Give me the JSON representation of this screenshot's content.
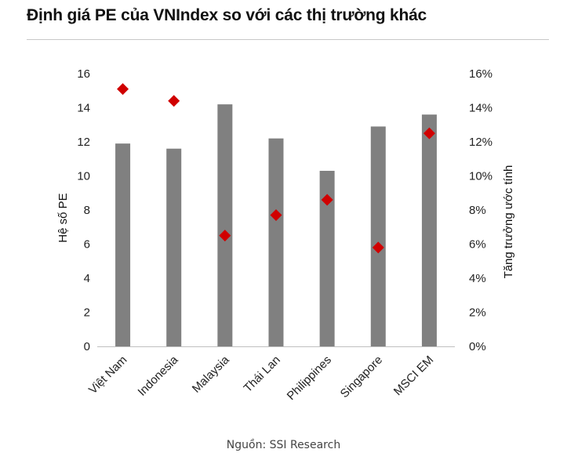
{
  "title": "Định giá PE của VNIndex so với các thị trường khác",
  "source": "Nguồn: SSI Research",
  "colors": {
    "bar": "#808080",
    "marker": "#d00000",
    "text": "#222222"
  },
  "chart_data": {
    "type": "bar",
    "categories": [
      "Việt Nam",
      "Indonesia",
      "Malaysia",
      "Thái Lan",
      "Philippines",
      "Singapore",
      "MSCI EM"
    ],
    "series": [
      {
        "values": [
          11.9,
          11.6,
          14.2,
          12.2,
          10.3,
          12.9,
          13.6
        ],
        "axis": "left",
        "kind": "bar"
      },
      {
        "values": [
          15.1,
          14.4,
          6.5,
          7.7,
          8.6,
          5.8,
          12.5
        ],
        "axis": "right",
        "kind": "marker"
      }
    ],
    "ylabel": "Hệ số PE",
    "y2label": "Tăng trưởng ước tính",
    "ylim": [
      0,
      16
    ],
    "y2lim": [
      0,
      16
    ],
    "yticks": [
      "0",
      "2",
      "4",
      "6",
      "8",
      "10",
      "12",
      "14",
      "16"
    ],
    "y2ticks": [
      "0%",
      "2%",
      "4%",
      "6%",
      "8%",
      "10%",
      "12%",
      "14%",
      "16%"
    ],
    "grid": false,
    "legend": "none"
  }
}
